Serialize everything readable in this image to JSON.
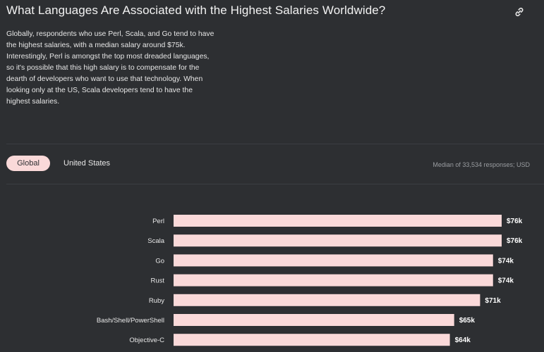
{
  "header": {
    "title": "What Languages Are Associated with the Highest Salaries Worldwide?",
    "description": "Globally, respondents who use Perl, Scala, and Go tend to have the highest salaries, with a median salary around $75k. Interestingly, Perl is amongst the top most dreaded languages, so it's possible that this high salary is to compensate for the dearth of developers who want to use that technology. When looking only at the US, Scala developers tend to have the highest salaries.",
    "link_icon": "link-icon"
  },
  "tabs": [
    {
      "label": "Global",
      "active": true
    },
    {
      "label": "United States",
      "active": false
    }
  ],
  "median_note": "Median of 33,534 responses; USD",
  "colors": {
    "background": "#2d2f32",
    "bar": "#fad9d9",
    "active_tab": "#fad9d9"
  },
  "chart_data": {
    "type": "bar",
    "orientation": "horizontal",
    "categories": [
      "Perl",
      "Scala",
      "Go",
      "Rust",
      "Ruby",
      "Bash/Shell/PowerShell",
      "Objective-C"
    ],
    "values": [
      76,
      76,
      74,
      74,
      71,
      65,
      64
    ],
    "value_labels": [
      "$76k",
      "$76k",
      "$74k",
      "$74k",
      "$71k",
      "$65k",
      "$64k"
    ],
    "unit": "USD thousands",
    "grid": false
  }
}
